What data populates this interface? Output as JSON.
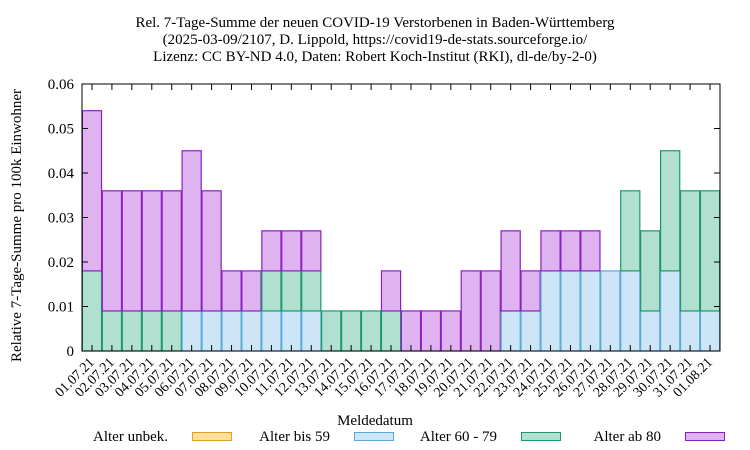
{
  "chart_data": {
    "type": "bar",
    "stacked": true,
    "title_lines": [
      "Rel. 7-Tage-Summe der neuen COVID-19 Verstorbenen in Baden-Württemberg",
      "(2025-03-09/2107, D. Lippold, https://covid19-de-stats.sourceforge.io/",
      "Lizenz: CC BY-ND 4.0, Daten: Robert Koch-Institut (RKI), dl-de/by-2-0)"
    ],
    "xlabel": "Meldedatum",
    "ylabel": "Relative 7-Tage-Summe pro 100k Einwohner",
    "ylim": [
      0,
      0.06
    ],
    "yticks": [
      "0",
      "0.01",
      "0.02",
      "0.03",
      "0.04",
      "0.05",
      "0.06"
    ],
    "legend_position": "bottom",
    "grid": false,
    "categories": [
      "01.07.21",
      "02.07.21",
      "03.07.21",
      "04.07.21",
      "05.07.21",
      "06.07.21",
      "07.07.21",
      "08.07.21",
      "09.07.21",
      "10.07.21",
      "11.07.21",
      "12.07.21",
      "13.07.21",
      "14.07.21",
      "15.07.21",
      "16.07.21",
      "17.07.21",
      "18.07.21",
      "19.07.21",
      "20.07.21",
      "21.07.21",
      "22.07.21",
      "23.07.21",
      "24.07.21",
      "25.07.21",
      "26.07.21",
      "27.07.21",
      "28.07.21",
      "29.07.21",
      "30.07.21",
      "31.07.21",
      "01.08.21"
    ],
    "series": [
      {
        "name": "Alter unbek.",
        "color": "#fbdf9b",
        "edge": "#e0a020",
        "values": [
          0,
          0,
          0,
          0,
          0,
          0,
          0,
          0,
          0,
          0,
          0,
          0,
          0,
          0,
          0,
          0,
          0,
          0,
          0,
          0,
          0,
          0,
          0,
          0,
          0,
          0,
          0,
          0,
          0,
          0,
          0,
          0
        ]
      },
      {
        "name": "Alter bis 59",
        "color": "#cce6f8",
        "edge": "#5aaad8",
        "values": [
          0,
          0,
          0,
          0,
          0,
          0.009,
          0.009,
          0.009,
          0.009,
          0.009,
          0.009,
          0.009,
          0,
          0,
          0,
          0,
          0,
          0,
          0,
          0,
          0,
          0.009,
          0.009,
          0.018,
          0.018,
          0.018,
          0.018,
          0.018,
          0.009,
          0.018,
          0.009,
          0.009
        ]
      },
      {
        "name": "Alter 60 - 79",
        "color": "#b2e0d0",
        "edge": "#1a9a6a",
        "values": [
          0.018,
          0.009,
          0.009,
          0.009,
          0.009,
          0,
          0,
          0,
          0,
          0.009,
          0.009,
          0.009,
          0.009,
          0.009,
          0.009,
          0.009,
          0,
          0,
          0,
          0,
          0,
          0,
          0,
          0,
          0,
          0,
          0,
          0.018,
          0.018,
          0.027,
          0.027,
          0.027
        ]
      },
      {
        "name": "Alter ab 80",
        "color": "#dfb3f0",
        "edge": "#8a20c0",
        "values": [
          0.036,
          0.027,
          0.027,
          0.027,
          0.027,
          0.036,
          0.027,
          0.009,
          0.009,
          0.009,
          0.009,
          0.009,
          0,
          0,
          0,
          0.009,
          0.009,
          0.009,
          0.009,
          0.018,
          0.018,
          0.018,
          0.009,
          0.009,
          0.009,
          0.009,
          0,
          0,
          0,
          0,
          0,
          0
        ]
      }
    ]
  }
}
